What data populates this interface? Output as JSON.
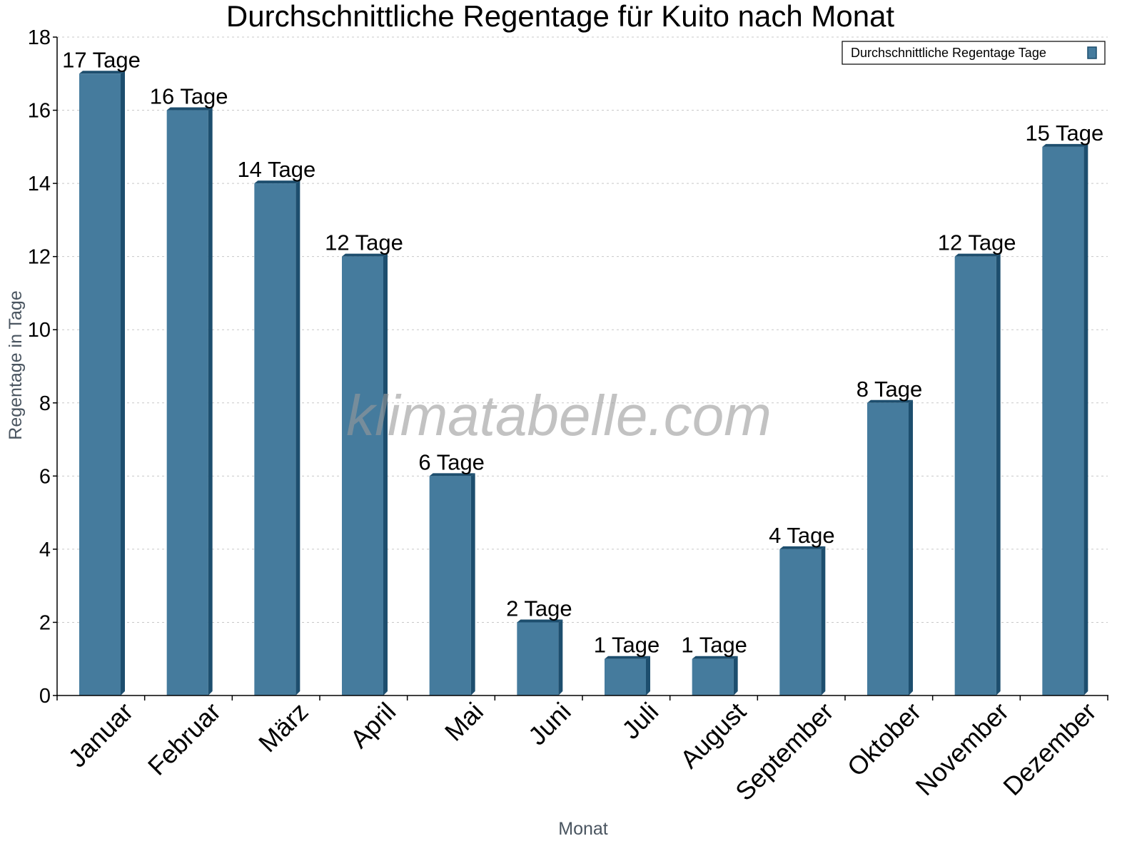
{
  "chart_data": {
    "type": "bar",
    "title": "Durchschnittliche Regentage für Kuito nach Monat",
    "xlabel": "Monat",
    "ylabel": "Regentage in Tage",
    "categories": [
      "Januar",
      "Februar",
      "März",
      "April",
      "Mai",
      "Juni",
      "Juli",
      "August",
      "September",
      "Oktober",
      "November",
      "Dezember"
    ],
    "series": [
      {
        "name": "Durchschnittliche Regentage Tage",
        "values": [
          17,
          16,
          14,
          12,
          6,
          2,
          1,
          1,
          4,
          8,
          12,
          15
        ],
        "data_labels": [
          "17 Tage",
          "16 Tage",
          "14 Tage",
          "12 Tage",
          "6 Tage",
          "2 Tage",
          "1 Tage",
          "1 Tage",
          "4 Tage",
          "8 Tage",
          "12 Tage",
          "15 Tage"
        ],
        "color": "#457b9d",
        "side_color": "#1d4e6e"
      }
    ],
    "ylim": [
      0,
      18
    ],
    "yticks": [
      0,
      2,
      4,
      6,
      8,
      10,
      12,
      14,
      16,
      18
    ],
    "grid": true,
    "legend_position": "top-right",
    "watermark": "klimatabelle.com"
  }
}
